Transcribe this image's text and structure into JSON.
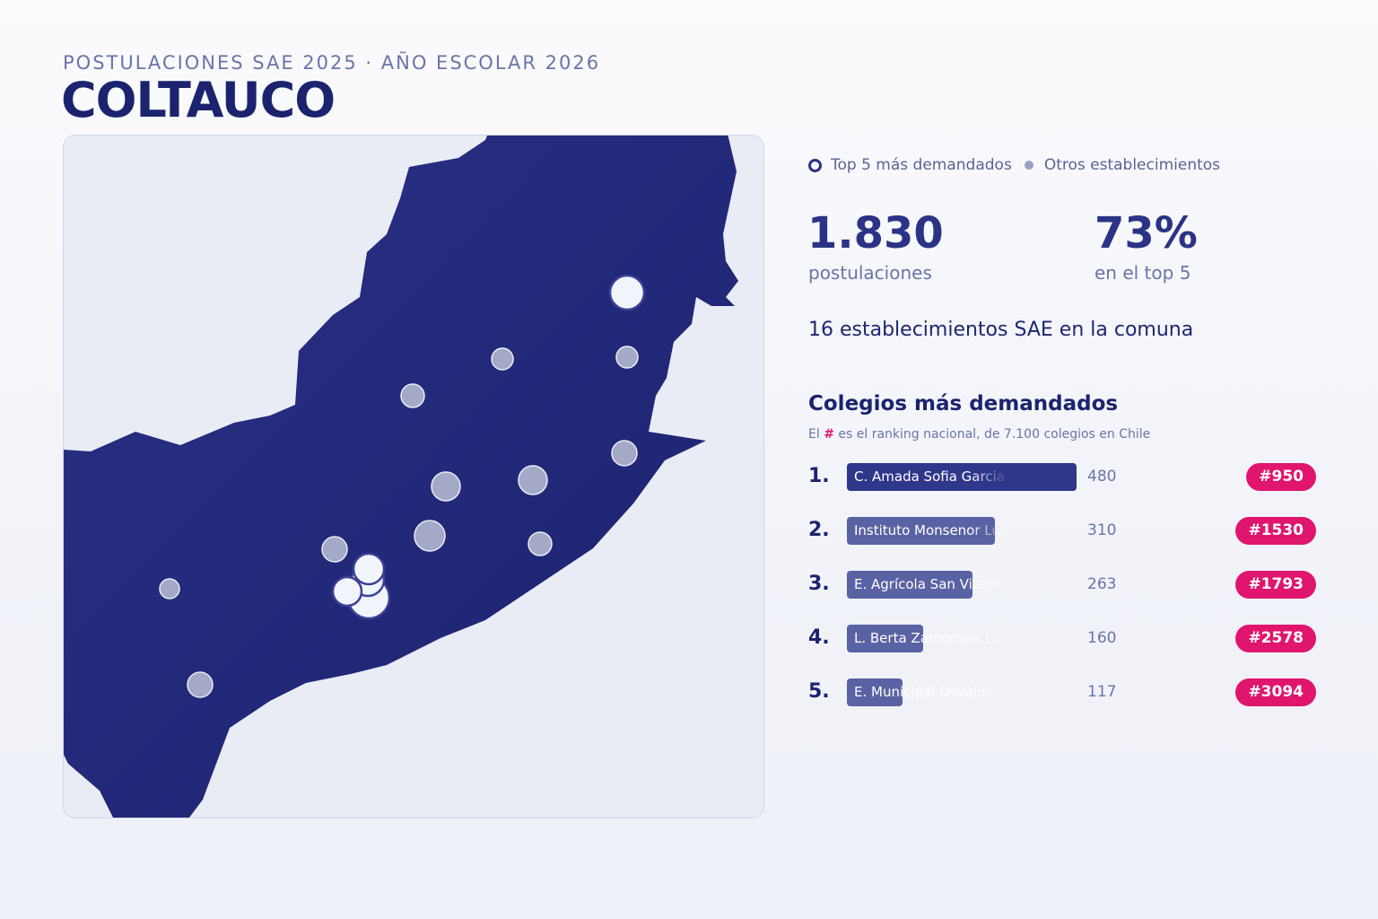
{
  "header": {
    "subtitle": "POSTULACIONES SAE 2025 · AÑO ESCOLAR 2026",
    "title": "COLTAUCO"
  },
  "legend": {
    "top5": "Top 5 más demandados",
    "others": "Otros establecimientos"
  },
  "stats": {
    "postulaciones_value": "1.830",
    "postulaciones_label": "postulaciones",
    "top5_value": "73%",
    "top5_label": "en el top 5",
    "comuna_line": "16 establecimientos SAE en la comuna"
  },
  "ranking": {
    "title": "Colegios más demandados",
    "note_prefix": "El",
    "note_hash": "#",
    "note_suffix": "es el ranking nacional, de 7.100 colegios en Chile",
    "max_count": 480,
    "items": [
      {
        "pos": "1.",
        "name": "C. Amada Sofia Garcia",
        "count": "480",
        "value": 480,
        "rank": "#950"
      },
      {
        "pos": "2.",
        "name": "Instituto Monsenor Luis",
        "count": "310",
        "value": 310,
        "rank": "#1530"
      },
      {
        "pos": "3.",
        "name": "E. Agrícola San Vicente",
        "count": "263",
        "value": 263,
        "rank": "#1793"
      },
      {
        "pos": "4.",
        "name": "L. Berta Zamorano Liza",
        "count": "160",
        "value": 160,
        "rank": "#2578"
      },
      {
        "pos": "5.",
        "name": "E. Municipal Osvaldo R",
        "count": "117",
        "value": 117,
        "rank": "#3094"
      }
    ]
  },
  "colors": {
    "region_fill": "#1f2675",
    "top5_fill": "#f2f4fb",
    "other_fill": "#a3a9c7",
    "badge": "#e0156e",
    "accent": "#2b3386"
  }
}
